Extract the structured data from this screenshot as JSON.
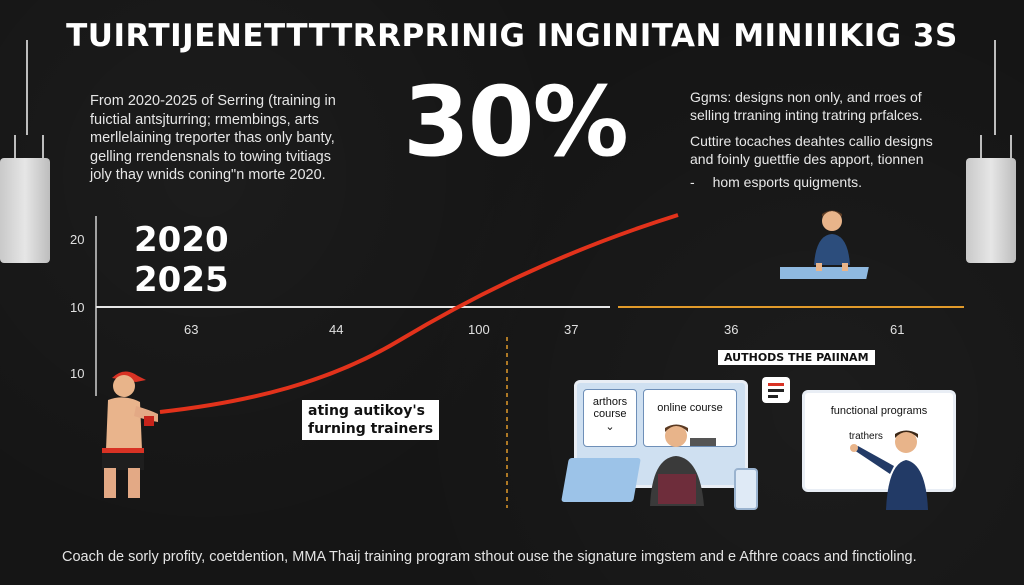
{
  "title": "TUIRTIJENETTTTRRPRINIG INGINITAN MINIIIKIG 3S",
  "intro_lines": [
    "From 2020-2025 of Serring (training in",
    "fuictial antsjturring; rmembings, arts",
    "merllelaining treporter thas only banty,",
    "gelling rrendensnals to towing tvitiags",
    "joly thay wnids coning\"n morte 2020."
  ],
  "big_stat": "30%",
  "right_top_lines": [
    "Ggms: designs non only, and rroes of",
    "selling trraning inting tratring prfalces."
  ],
  "right_mid_lines": [
    "Cuttire tocaches deahtes callio designs",
    "and foinly guettfie des apport, tionnen"
  ],
  "bullet": {
    "marker": "-",
    "text": "hom esports quigments."
  },
  "chart": {
    "years": [
      "2020",
      "2025"
    ],
    "y_labels": [
      "20",
      "10",
      "10"
    ],
    "x_labels_left": [
      "63",
      "44",
      "100",
      "37"
    ],
    "x_labels_right": [
      "36",
      "61"
    ],
    "line_color": "#e2321b",
    "right_axis_color": "#e19a2a"
  },
  "trainers_callout": {
    "lines": [
      "ating autikoy's",
      "furning trainers"
    ]
  },
  "course_callout": "AUTHODS THE PAIINAM",
  "laptop_cards": {
    "left_lines": [
      "arthors",
      "course"
    ],
    "chevron": "⌄",
    "right": "online course"
  },
  "right_screen": {
    "title": "functional programs",
    "sub": "trathers"
  },
  "caption": "Coach de sorly profity, coetdention, MMA Thaij training program sthout ouse the signature imgstem and e Afthre coacs and finctioling.",
  "colors": {
    "background": "#151515",
    "accent_red": "#e2321b",
    "accent_orange": "#e19a2a"
  }
}
